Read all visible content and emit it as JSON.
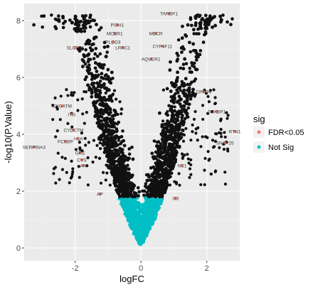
{
  "chart_data": {
    "type": "scatter",
    "title": "",
    "xlabel": "logFC",
    "ylabel": "-log10(P.Value)",
    "xlim": [
      -3.55,
      3.0
    ],
    "ylim": [
      -0.45,
      8.6
    ],
    "x_ticks": [
      -2,
      0,
      2
    ],
    "x_tick_labels": [
      "-2",
      "0",
      "2"
    ],
    "y_ticks": [
      0,
      2,
      4,
      6,
      8
    ],
    "y_tick_labels": [
      "0",
      "2",
      "4",
      "6",
      "8"
    ],
    "grid": true,
    "legend_position": "right",
    "legend": {
      "title": "sig",
      "entries": [
        {
          "label": "FDR<0.05",
          "color": "#F8766D"
        },
        {
          "label": "Not Sig",
          "color": "#00BFC4"
        }
      ]
    },
    "significance_threshold_y": 1.8,
    "labeled_genes": [
      {
        "label": "TARBP1",
        "x": 0.85,
        "y": 8.25
      },
      {
        "label": "PSIH1",
        "x": -0.72,
        "y": 7.85
      },
      {
        "label": "MCBR1",
        "x": -0.8,
        "y": 7.55
      },
      {
        "label": "MBCR",
        "x": 0.45,
        "y": 7.55
      },
      {
        "label": "PLOD3",
        "x": -0.85,
        "y": 7.25
      },
      {
        "label": "SLC7A2",
        "x": -2.0,
        "y": 7.05
      },
      {
        "label": "LRRC1",
        "x": -0.55,
        "y": 7.05
      },
      {
        "label": "CYP4F11",
        "x": 0.65,
        "y": 7.1
      },
      {
        "label": "AQUER1",
        "x": 0.3,
        "y": 6.65
      },
      {
        "label": "CPPP4",
        "x": 1.9,
        "y": 5.5
      },
      {
        "label": "STXBP1",
        "x": 2.3,
        "y": 4.8
      },
      {
        "label": "CYGATM",
        "x": -2.4,
        "y": 5.0
      },
      {
        "label": "ITG",
        "x": -2.1,
        "y": 4.7
      },
      {
        "label": "CYDCTM",
        "x": -2.05,
        "y": 4.15
      },
      {
        "label": "RTN1",
        "x": 2.85,
        "y": 4.1
      },
      {
        "label": "HLA",
        "x": -1.9,
        "y": 3.85
      },
      {
        "label": "FCSBP",
        "x": -2.3,
        "y": 3.75
      },
      {
        "label": "SERPINA3",
        "x": -3.25,
        "y": 3.55
      },
      {
        "label": "SNAP25",
        "x": 2.55,
        "y": 3.7
      },
      {
        "label": "GRE",
        "x": -1.85,
        "y": 3.35
      },
      {
        "label": "CYS",
        "x": -1.8,
        "y": 3.1
      },
      {
        "label": "AN",
        "x": -1.75,
        "y": 2.9
      },
      {
        "label": "NC1",
        "x": 1.25,
        "y": 2.9
      },
      {
        "label": "AP",
        "x": -1.25,
        "y": 1.9
      },
      {
        "label": "G3",
        "x": 1.05,
        "y": 1.75
      }
    ]
  }
}
